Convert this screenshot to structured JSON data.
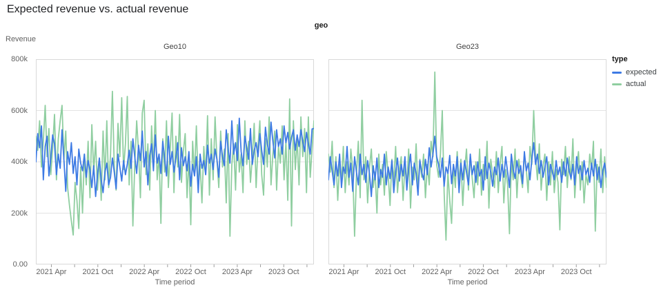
{
  "title": "Expected revenue vs. actual revenue",
  "facet_header": "geo",
  "axes": {
    "y_label": "Revenue",
    "x_label": "Time period"
  },
  "legend": {
    "title": "type",
    "items": [
      {
        "label": "expected",
        "color": "#3D7AE4"
      },
      {
        "label": "actual",
        "color": "#8FCEA0"
      }
    ]
  },
  "chart_data": {
    "type": "line",
    "facet_field": "geo",
    "x_field": "Time period (weekly, Feb 2021 - Dec 2023)",
    "y_field": "Revenue",
    "ylim_k": [
      0,
      800
    ],
    "values_unit": "thousands",
    "grid": "horizontal-only",
    "legend_position": "right",
    "colors": {
      "expected": "#3D7AE4",
      "actual": "#8FCEA0"
    },
    "y_ticks": [
      {
        "label": "800k",
        "value": 800
      },
      {
        "label": "600k",
        "value": 600
      },
      {
        "label": "400k",
        "value": 400
      },
      {
        "label": "200k",
        "value": 200
      },
      {
        "label": "0.00",
        "value": 0
      }
    ],
    "y_gridlines_k": [
      200,
      400,
      600
    ],
    "x_domain_months": 35.9,
    "x_ticks": [
      {
        "month": 2,
        "label": "2021 Apr"
      },
      {
        "month": 5,
        "label": ""
      },
      {
        "month": 8,
        "label": "2021 Oct"
      },
      {
        "month": 11,
        "label": ""
      },
      {
        "month": 14,
        "label": "2022 Apr"
      },
      {
        "month": 17,
        "label": ""
      },
      {
        "month": 20,
        "label": "2022 Oct"
      },
      {
        "month": 23,
        "label": ""
      },
      {
        "month": 26,
        "label": "2023 Apr"
      },
      {
        "month": 29,
        "label": ""
      },
      {
        "month": 32,
        "label": "2023 Oct"
      },
      {
        "month": 35,
        "label": ""
      }
    ],
    "facets": [
      {
        "name": "Geo10",
        "series": [
          {
            "name": "expected",
            "values_k": [
              400,
              510,
              455,
              540,
              330,
              460,
              500,
              345,
              415,
              505,
              470,
              350,
              430,
              375,
              525,
              410,
              285,
              440,
              390,
              475,
              355,
              420,
              310,
              450,
              395,
              365,
              430,
              340,
              405,
              370,
              300,
              385,
              265,
              350,
              415,
              330,
              280,
              360,
              395,
              310,
              340,
              415,
              360,
              295,
              430,
              380,
              325,
              405,
              350,
              390,
              445,
              375,
              490,
              420,
              355,
              465,
              405,
              520,
              380,
              440,
              310,
              425,
              470,
              365,
              505,
              395,
              430,
              355,
              480,
              415,
              345,
              500,
              390,
              440,
              360,
              415,
              475,
              330,
              455,
              385,
              420,
              365,
              440,
              305,
              390,
              345,
              420,
              280,
              430,
              375,
              405,
              350,
              465,
              395,
              430,
              370,
              450,
              410,
              340,
              480,
              420,
              385,
              525,
              450,
              395,
              560,
              430,
              475,
              405,
              570,
              440,
              385,
              500,
              455,
              410,
              530,
              390,
              445,
              475,
              420,
              510,
              445,
              390,
              535,
              470,
              430,
              555,
              480,
              415,
              525,
              460,
              490,
              430,
              540,
              475,
              515,
              450,
              495,
              525,
              445,
              505,
              460,
              525,
              480,
              440,
              515,
              470,
              430,
              528,
              530
            ]
          },
          {
            "name": "actual",
            "values_k": [
              500,
              445,
              560,
              380,
              480,
              620,
              420,
              530,
              350,
              455,
              585,
              330,
              490,
              560,
              620,
              410,
              520,
              300,
              230,
              170,
              115,
              320,
              250,
              140,
              380,
              200,
              430,
              310,
              480,
              260,
              545,
              360,
              480,
              290,
              410,
              250,
              520,
              330,
              560,
              300,
              430,
              675,
              380,
              290,
              550,
              420,
              650,
              370,
              470,
              655,
              310,
              480,
              150,
              390,
              560,
              440,
              260,
              590,
              640,
              350,
              470,
              290,
              540,
              380,
              600,
              330,
              430,
              160,
              490,
              360,
              560,
              300,
              450,
              590,
              280,
              500,
              380,
              585,
              320,
              440,
              510,
              260,
              420,
              155,
              480,
              350,
              540,
              300,
              390,
              240,
              460,
              350,
              580,
              270,
              490,
              330,
              575,
              410,
              300,
              520,
              380,
              450,
              240,
              510,
              110,
              390,
              470,
              290,
              545,
              360,
              430,
              280,
              560,
              390,
              480,
              320,
              420,
              550,
              300,
              460,
              560,
              350,
              270,
              490,
              380,
              575,
              310,
              430,
              520,
              290,
              460,
              395,
              540,
              330,
              480,
              250,
              645,
              150,
              560,
              370,
              490,
              310,
              575,
              420,
              530,
              280,
              575,
              340,
              450,
              560
            ]
          }
        ]
      },
      {
        "name": "Geo23",
        "series": [
          {
            "name": "expected",
            "values_k": [
              330,
              420,
              365,
              310,
              400,
              345,
              430,
              300,
              380,
              355,
              460,
              340,
              395,
              285,
              420,
              360,
              310,
              430,
              350,
              390,
              320,
              405,
              355,
              265,
              385,
              330,
              415,
              300,
              370,
              340,
              430,
              310,
              380,
              335,
              405,
              280,
              360,
              415,
              325,
              390,
              345,
              420,
              290,
              375,
              430,
              310,
              395,
              355,
              270,
              405,
              360,
              330,
              410,
              350,
              455,
              380,
              430,
              500,
              420,
              390,
              340,
              415,
              305,
              380,
              355,
              425,
              315,
              390,
              345,
              420,
              280,
              395,
              330,
              405,
              360,
              310,
              430,
              350,
              385,
              320,
              400,
              345,
              370,
              290,
              420,
              335,
              395,
              360,
              305,
              380,
              350,
              415,
              325,
              390,
              340,
              420,
              360,
              300,
              430,
              370,
              335,
              405,
              355,
              385,
              315,
              440,
              365,
              395,
              330,
              410,
              475,
              390,
              430,
              355,
              405,
              340,
              380,
              420,
              310,
              390,
              360,
              330,
              405,
              350,
              380,
              320,
              400,
              345,
              415,
              365,
              335,
              390,
              310,
              420,
              355,
              385,
              330,
              405,
              350,
              375,
              320,
              395,
              345,
              410,
              330,
              380,
              300,
              365,
              395,
              340
            ]
          },
          {
            "name": "actual",
            "values_k": [
              430,
              360,
              480,
              300,
              420,
              250,
              390,
              330,
              460,
              280,
              400,
              310,
              450,
              370,
              110,
              350,
              480,
              260,
              640,
              330,
              420,
              240,
              380,
              450,
              300,
              360,
              200,
              430,
              310,
              390,
              270,
              440,
              350,
              230,
              410,
              320,
              460,
              280,
              370,
              420,
              250,
              390,
              310,
              450,
              220,
              380,
              330,
              470,
              290,
              410,
              340,
              430,
              260,
              390,
              310,
              480,
              420,
              750,
              390,
              340,
              430,
              600,
              280,
              95,
              360,
              250,
              160,
              390,
              300,
              440,
              320,
              410,
              230,
              370,
              450,
              290,
              420,
              340,
              260,
              400,
              310,
              450,
              270,
              390,
              330,
              480,
              220,
              410,
              350,
              300,
              440,
              280,
              390,
              460,
              240,
              370,
              310,
              120,
              400,
              330,
              450,
              260,
              410,
              350,
              300,
              430,
              370,
              280,
              460,
              390,
              600,
              420,
              330,
              470,
              290,
              380,
              430,
              250,
              400,
              310,
              440,
              280,
              370,
              320,
              135,
              410,
              350,
              460,
              300,
              420,
              330,
              490,
              260,
              380,
              440,
              290,
              400,
              240,
              350,
              310,
              430,
              370,
              480,
              130,
              390,
              320,
              450,
              280,
              420,
              300
            ]
          }
        ]
      }
    ]
  }
}
